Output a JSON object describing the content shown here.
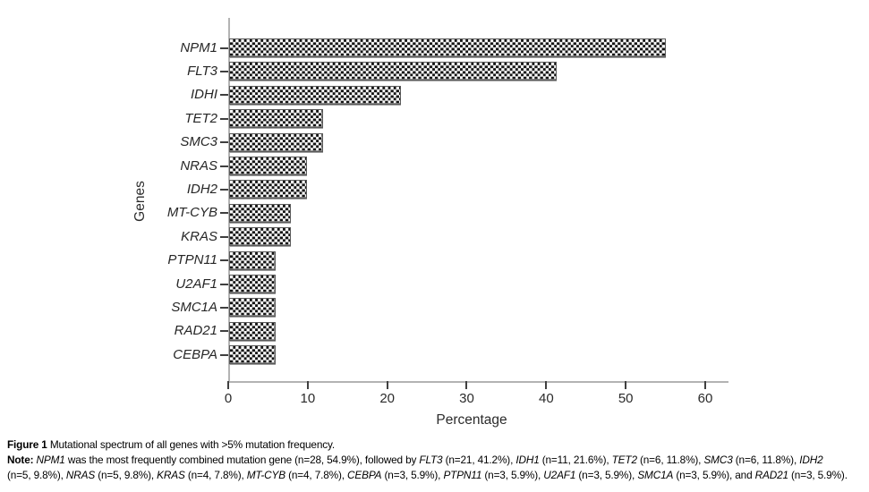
{
  "chart_data": {
    "type": "bar",
    "orientation": "horizontal",
    "title": "",
    "categories": [
      "NPM1",
      "FLT3",
      "IDHI",
      "TET2",
      "SMC3",
      "NRAS",
      "IDH2",
      "MT-CYB",
      "KRAS",
      "PTPN11",
      "U2AF1",
      "SMC1A",
      "RAD21",
      "CEBPA"
    ],
    "values": [
      54.9,
      41.2,
      21.6,
      11.8,
      11.8,
      9.8,
      9.8,
      7.8,
      7.8,
      5.9,
      5.9,
      5.9,
      5.9,
      5.9
    ],
    "counts": [
      28,
      21,
      11,
      6,
      6,
      5,
      5,
      4,
      4,
      3,
      3,
      3,
      3,
      3
    ],
    "xlabel": "Percentage",
    "ylabel": "Genes",
    "xlim": [
      0,
      60
    ],
    "xticks": [
      0,
      10,
      20,
      30,
      40,
      50,
      60
    ],
    "grid": false,
    "legend": "none",
    "bar_fill": "black-white-checkerboard",
    "bar_border_color": "#5a5a5a",
    "axis_color": "#b3b3b3",
    "tick_color": "#3f3f3f"
  },
  "caption": {
    "line1": [
      {
        "t": "Figure 1",
        "b": 1
      },
      {
        "t": " Mutational spectrum of all genes with >5% mutation frequency."
      }
    ],
    "line2": [
      {
        "t": "Note:",
        "b": 1
      },
      {
        "t": " "
      },
      {
        "t": "NPM1",
        "i": 1
      },
      {
        "t": " was the most frequently combined mutation gene (n=28, 54.9%), followed by "
      },
      {
        "t": "FLT3",
        "i": 1
      },
      {
        "t": " (n=21, 41.2%), "
      },
      {
        "t": "IDH1",
        "i": 1
      },
      {
        "t": " (n=11, 21.6%), "
      },
      {
        "t": "TET2",
        "i": 1
      },
      {
        "t": " (n=6, 11.8%), "
      },
      {
        "t": "SMC3",
        "i": 1
      },
      {
        "t": " (n=6, 11.8%), "
      },
      {
        "t": "IDH2",
        "i": 1
      }
    ],
    "line3": [
      {
        "t": "(n=5, 9.8%), "
      },
      {
        "t": "NRAS",
        "i": 1
      },
      {
        "t": " (n=5, 9.8%), "
      },
      {
        "t": "KRAS",
        "i": 1
      },
      {
        "t": " (n=4, 7.8%), "
      },
      {
        "t": "MT-CYB",
        "i": 1
      },
      {
        "t": " (n=4, 7.8%), "
      },
      {
        "t": "CEBPA",
        "i": 1
      },
      {
        "t": " (n=3, 5.9%), "
      },
      {
        "t": "PTPN11",
        "i": 1
      },
      {
        "t": " (n=3, 5.9%), "
      },
      {
        "t": "U2AF1",
        "i": 1
      },
      {
        "t": " (n=3, 5.9%), "
      },
      {
        "t": "SMC1A",
        "i": 1
      },
      {
        "t": " (n=3, 5.9%), and "
      },
      {
        "t": "RAD21",
        "i": 1
      },
      {
        "t": " (n=3, 5.9%)."
      }
    ]
  }
}
